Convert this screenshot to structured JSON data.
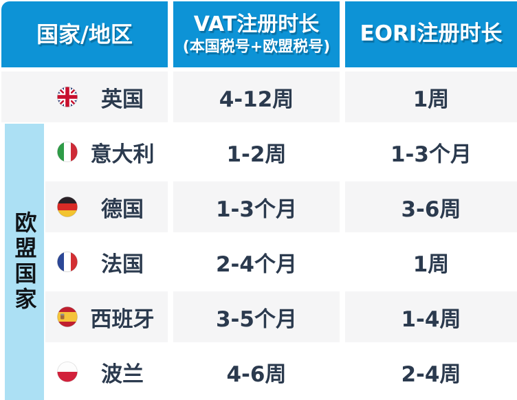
{
  "header": {
    "col_country": "国家/地区",
    "col_vat": "VAT注册时长",
    "col_vat_sub": "(本国税号+欧盟税号)",
    "col_eori": "EORI注册时长"
  },
  "sidebar": {
    "label": "欧盟国家"
  },
  "rows": [
    {
      "country": "英国",
      "flag": "uk-flag",
      "vat": "4-12周",
      "eori": "1周",
      "eu": false,
      "shade": "gray"
    },
    {
      "country": "意大利",
      "flag": "italy-flag",
      "vat": "1-2周",
      "eori": "1-3个月",
      "eu": true,
      "shade": "white"
    },
    {
      "country": "德国",
      "flag": "germany-flag",
      "vat": "1-3个月",
      "eori": "3-6周",
      "eu": true,
      "shade": "gray"
    },
    {
      "country": "法国",
      "flag": "france-flag",
      "vat": "2-4个月",
      "eori": "1周",
      "eu": true,
      "shade": "white"
    },
    {
      "country": "西班牙",
      "flag": "spain-flag",
      "vat": "3-5个月",
      "eori": "1-4周",
      "eu": true,
      "shade": "gray"
    },
    {
      "country": "波兰",
      "flag": "poland-flag",
      "vat": "4-6周",
      "eori": "2-4周",
      "eu": true,
      "shade": "white"
    }
  ],
  "colors": {
    "header_bg": "#0D93D6",
    "header_text": "#FFFFFF",
    "row_gray": "#F5F5F6",
    "text_dark": "#2B3A4E",
    "sidebar_bg": "#ACE0F4",
    "sidebar_text": "#101418"
  },
  "chart_data": {
    "type": "table",
    "title": "",
    "columns": [
      "国家/地区",
      "VAT注册时长 (本国税号+欧盟税号)",
      "EORI注册时长"
    ],
    "rows": [
      [
        "英国",
        "4-12周",
        "1周"
      ],
      [
        "意大利",
        "1-2周",
        "1-3个月"
      ],
      [
        "德国",
        "1-3个月",
        "3-6周"
      ],
      [
        "法国",
        "2-4个月",
        "1周"
      ],
      [
        "西班牙",
        "3-5个月",
        "1-4周"
      ],
      [
        "波兰",
        "4-6周",
        "2-4周"
      ]
    ],
    "row_group": {
      "label": "欧盟国家",
      "members": [
        "意大利",
        "德国",
        "法国",
        "西班牙",
        "波兰"
      ]
    }
  }
}
